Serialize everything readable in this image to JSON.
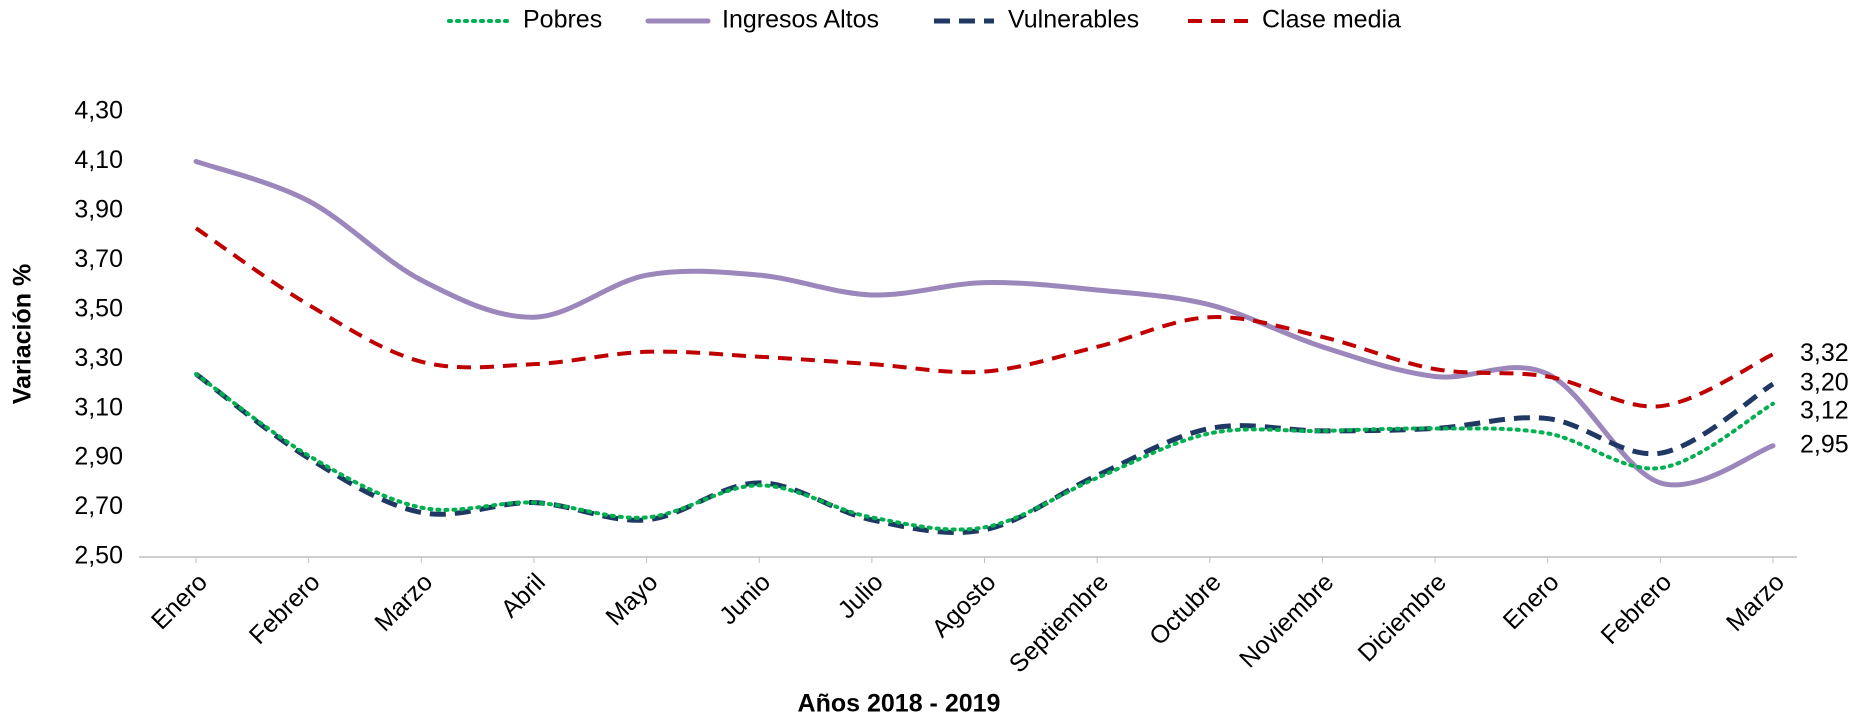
{
  "chart_data": {
    "type": "line",
    "xlabel": "Años 2018 - 2019",
    "ylabel": "Variación  %",
    "categories": [
      "Enero",
      "Febrero",
      "Marzo",
      "Abril",
      "Mayo",
      "Junio",
      "Julio",
      "Agosto",
      "Septiembre",
      "Octubre",
      "Noviembre",
      "Diciembre",
      "Enero",
      "Febrero",
      "Marzo"
    ],
    "ylim": [
      2.5,
      4.3
    ],
    "yticks": [
      {
        "value": 2.5,
        "label": "2,50"
      },
      {
        "value": 2.7,
        "label": "2,70"
      },
      {
        "value": 2.9,
        "label": "2,90"
      },
      {
        "value": 3.1,
        "label": "3,10"
      },
      {
        "value": 3.3,
        "label": "3,30"
      },
      {
        "value": 3.5,
        "label": "3,50"
      },
      {
        "value": 3.7,
        "label": "3,70"
      },
      {
        "value": 3.9,
        "label": "3,90"
      },
      {
        "value": 4.1,
        "label": "4,10"
      },
      {
        "value": 4.3,
        "label": "4,30"
      }
    ],
    "grid": false,
    "legend": "top",
    "smooth": true,
    "series": [
      {
        "name": "Pobres",
        "color": "#00b050",
        "style": "dotted",
        "values": [
          3.24,
          2.91,
          2.7,
          2.72,
          2.66,
          2.79,
          2.66,
          2.62,
          2.82,
          3.0,
          3.01,
          3.02,
          3.0,
          2.86,
          3.12
        ],
        "value_labels": [
          null,
          null,
          null,
          null,
          null,
          null,
          null,
          null,
          null,
          null,
          null,
          null,
          null,
          null,
          "3,12"
        ]
      },
      {
        "name": "Ingresos Altos",
        "color": "#9b87bb",
        "style": "solid",
        "values": [
          4.1,
          3.94,
          3.62,
          3.47,
          3.64,
          3.64,
          3.56,
          3.61,
          3.58,
          3.52,
          3.35,
          3.23,
          3.24,
          2.8,
          2.95
        ],
        "value_labels": [
          null,
          null,
          null,
          null,
          null,
          null,
          null,
          null,
          null,
          null,
          null,
          null,
          null,
          null,
          "2,95"
        ]
      },
      {
        "name": "Vulnerables",
        "color": "#1f3864",
        "style": "dashed",
        "values": [
          3.24,
          2.9,
          2.68,
          2.72,
          2.65,
          2.8,
          2.65,
          2.61,
          2.83,
          3.02,
          3.01,
          3.02,
          3.06,
          2.92,
          3.2
        ],
        "value_labels": [
          null,
          null,
          null,
          null,
          null,
          null,
          null,
          null,
          null,
          null,
          null,
          null,
          null,
          null,
          "3,20"
        ]
      },
      {
        "name": "Clase media",
        "color": "#c00000",
        "style": "dashed-outline",
        "values": [
          3.83,
          3.52,
          3.29,
          3.28,
          3.33,
          3.31,
          3.28,
          3.25,
          3.35,
          3.47,
          3.39,
          3.26,
          3.23,
          3.11,
          3.32
        ],
        "value_labels": [
          null,
          null,
          null,
          null,
          null,
          null,
          null,
          null,
          null,
          null,
          null,
          null,
          null,
          null,
          "3,32"
        ]
      }
    ]
  }
}
